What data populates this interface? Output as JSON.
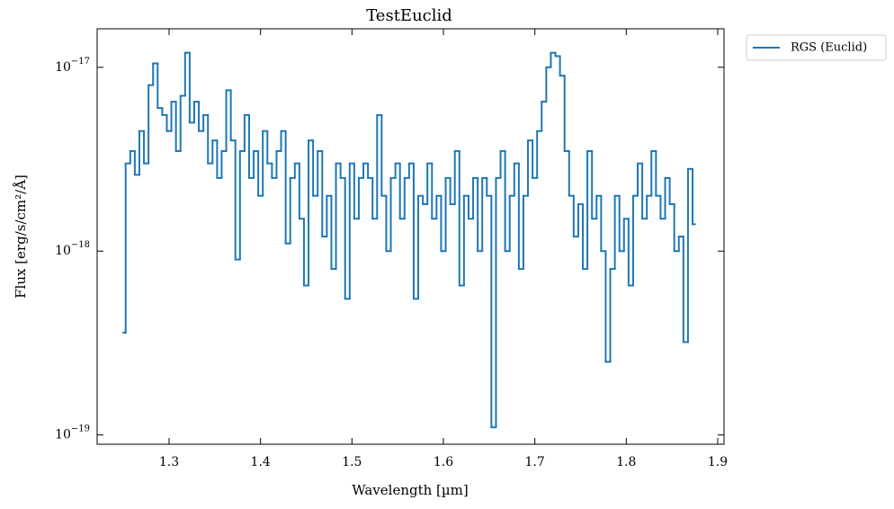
{
  "chart_data": {
    "type": "line",
    "drawstyle": "steps-mid",
    "title": "TestEuclid",
    "xlabel": "Wavelength [µm]",
    "ylabel": "Flux [erg/s/cm²/Å]",
    "xlim": [
      1.2213,
      1.9069
    ],
    "ylim": [
      8.9e-20,
      1.62e-17
    ],
    "ylog": true,
    "xticks": [
      1.3,
      1.4,
      1.5,
      1.6,
      1.7,
      1.8,
      1.9
    ],
    "yticks": [
      {
        "value": 1e-17,
        "label": "10−17"
      },
      {
        "value": 1e-18,
        "label": "10−18"
      },
      {
        "value": 1e-19,
        "label": "10−19"
      }
    ],
    "legend": "outside upper right",
    "grid": false,
    "series": [
      {
        "name": "RGS (Euclid)",
        "color": "#1f77b4",
        "x": [
          1.25,
          1.255,
          1.26,
          1.265,
          1.27,
          1.275,
          1.28,
          1.285,
          1.29,
          1.295,
          1.3,
          1.305,
          1.31,
          1.315,
          1.32,
          1.325,
          1.33,
          1.335,
          1.34,
          1.345,
          1.35,
          1.355,
          1.36,
          1.365,
          1.37,
          1.375,
          1.38,
          1.385,
          1.39,
          1.395,
          1.4,
          1.405,
          1.41,
          1.415,
          1.42,
          1.425,
          1.43,
          1.435,
          1.44,
          1.445,
          1.45,
          1.455,
          1.46,
          1.465,
          1.47,
          1.475,
          1.48,
          1.485,
          1.49,
          1.495,
          1.5,
          1.505,
          1.51,
          1.515,
          1.52,
          1.525,
          1.53,
          1.535,
          1.54,
          1.545,
          1.55,
          1.555,
          1.56,
          1.565,
          1.57,
          1.575,
          1.58,
          1.585,
          1.59,
          1.595,
          1.6,
          1.605,
          1.61,
          1.615,
          1.62,
          1.625,
          1.63,
          1.635,
          1.64,
          1.645,
          1.65,
          1.655,
          1.66,
          1.665,
          1.67,
          1.675,
          1.68,
          1.685,
          1.69,
          1.695,
          1.7,
          1.705,
          1.71,
          1.715,
          1.72,
          1.725,
          1.73,
          1.735,
          1.74,
          1.745,
          1.75,
          1.755,
          1.76,
          1.765,
          1.77,
          1.775,
          1.78,
          1.785,
          1.79,
          1.795,
          1.8,
          1.805,
          1.81,
          1.815,
          1.82,
          1.825,
          1.83,
          1.835,
          1.84,
          1.845,
          1.85,
          1.855,
          1.86,
          1.865,
          1.87,
          1.875
        ],
        "values": [
          3.6e-19,
          3e-18,
          3.5e-18,
          2.6e-18,
          4.5e-18,
          3e-18,
          8e-18,
          1.05e-17,
          6e-18,
          5.5e-18,
          4.5e-18,
          6.5e-18,
          3.5e-18,
          7e-18,
          1.2e-17,
          5e-18,
          6.5e-18,
          4.5e-18,
          5.5e-18,
          3e-18,
          4e-18,
          2.5e-18,
          3.5e-18,
          7.5e-18,
          4e-18,
          9e-19,
          3.5e-18,
          5.5e-18,
          2.5e-18,
          3.5e-18,
          2e-18,
          4.5e-18,
          3e-18,
          2.5e-18,
          3.5e-18,
          4.5e-18,
          1.1e-18,
          2.5e-18,
          3e-18,
          1.5e-18,
          6.5e-19,
          4e-18,
          2e-18,
          3.5e-18,
          1.2e-18,
          2e-18,
          8e-19,
          3e-18,
          2.5e-18,
          5.5e-19,
          3e-18,
          1.5e-18,
          2.5e-18,
          3e-18,
          2.5e-18,
          1.5e-18,
          5.5e-18,
          2e-18,
          1e-18,
          2.5e-18,
          3e-18,
          1.5e-18,
          2.5e-18,
          3e-18,
          5.5e-19,
          2e-18,
          1.8e-18,
          3e-18,
          1.5e-18,
          2e-18,
          1e-18,
          2.5e-18,
          1.8e-18,
          3.5e-18,
          6.5e-19,
          2e-18,
          1.5e-18,
          2.5e-18,
          1e-18,
          2.5e-18,
          2e-18,
          1.1e-19,
          2.5e-18,
          3.5e-18,
          1e-18,
          2e-18,
          3e-18,
          8e-19,
          2e-18,
          4e-18,
          2.5e-18,
          4.5e-18,
          6.5e-18,
          1e-17,
          1.2e-17,
          1.15e-17,
          9e-18,
          3.5e-18,
          2e-18,
          1.2e-18,
          1.8e-18,
          8e-19,
          3.5e-18,
          1.5e-18,
          2e-18,
          1e-18,
          2.5e-19,
          8e-19,
          2e-18,
          1e-18,
          1.5e-18,
          6.5e-19,
          2e-18,
          3e-18,
          1.5e-18,
          2e-18,
          3.5e-18,
          2e-18,
          1.5e-18,
          2.5e-18,
          1.8e-18,
          1e-18,
          1.2e-18,
          3.2e-19,
          2.8e-18,
          1.4e-18
        ]
      }
    ]
  }
}
